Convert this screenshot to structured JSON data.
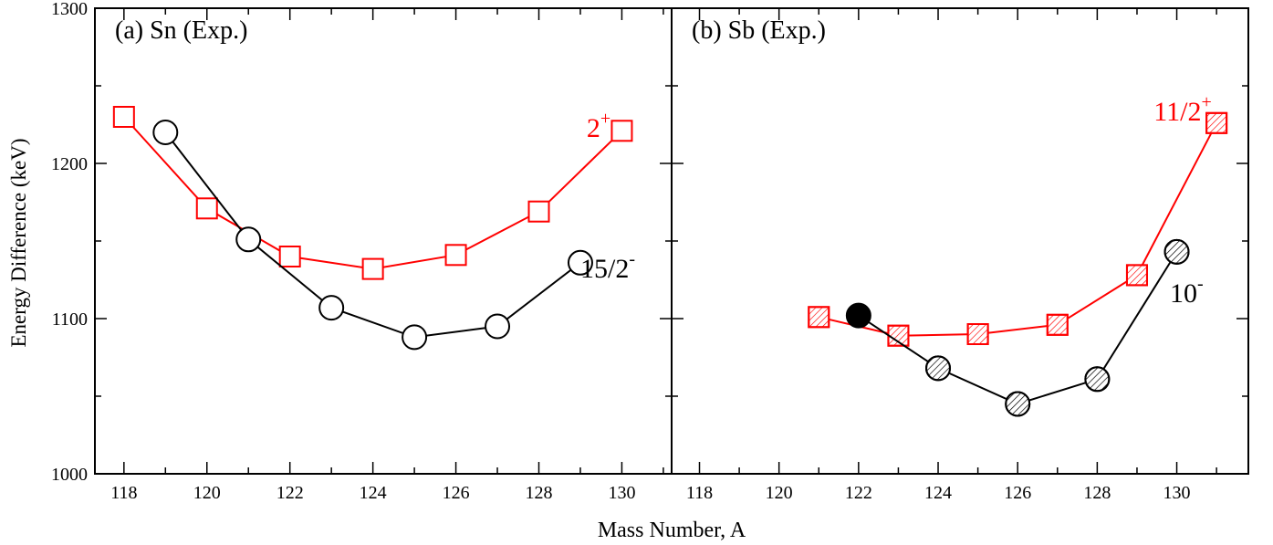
{
  "figure": {
    "ylabel": "Energy Difference (keV)",
    "xlabel": "Mass Number, A"
  },
  "chart_data": [
    {
      "type": "line",
      "title": "(a) Sn (Exp.)",
      "xlabel": "Mass Number, A",
      "ylabel": "Energy Difference (keV)",
      "xlim": [
        117.3,
        131.2
      ],
      "ylim": [
        1000,
        1300
      ],
      "xticks": [
        118,
        120,
        122,
        124,
        126,
        128,
        130
      ],
      "yticks": [
        1000,
        1100,
        1200,
        1300
      ],
      "grid": false,
      "series": [
        {
          "name": "2+",
          "label_main": "2",
          "label_sup": "+",
          "color": "#ff0000",
          "marker": "open-square",
          "x": [
            118,
            120,
            122,
            124,
            126,
            128,
            130
          ],
          "y": [
            1230,
            1171,
            1140,
            1132,
            1141,
            1169,
            1221
          ]
        },
        {
          "name": "15/2-",
          "label_main": "15/2",
          "label_sup": "-",
          "color": "#000000",
          "marker": "open-circle",
          "x": [
            119,
            121,
            123,
            125,
            127,
            129
          ],
          "y": [
            1220,
            1151,
            1107,
            1088,
            1095,
            1136
          ]
        }
      ]
    },
    {
      "type": "line",
      "title": "(b) Sb (Exp.)",
      "xlabel": "Mass Number, A",
      "ylabel": "Energy Difference (keV)",
      "xlim": [
        117.3,
        131.8
      ],
      "ylim": [
        1000,
        1300
      ],
      "xticks": [
        118,
        120,
        122,
        124,
        126,
        128,
        130
      ],
      "yticks": [
        1000,
        1100,
        1200,
        1300
      ],
      "grid": false,
      "series": [
        {
          "name": "11/2+",
          "label_main": "11/2",
          "label_sup": "+",
          "color": "#ff0000",
          "marker": "hatched-square",
          "x": [
            121,
            123,
            125,
            127,
            129,
            131
          ],
          "y": [
            1101,
            1089,
            1090,
            1096,
            1128,
            1226
          ]
        },
        {
          "name": "10-",
          "label_main": "10",
          "label_sup": "-",
          "color": "#000000",
          "marker": "hatched-circle",
          "filled_x": [
            122
          ],
          "x": [
            122,
            124,
            126,
            128,
            130
          ],
          "y": [
            1102,
            1068,
            1045,
            1061,
            1143
          ]
        }
      ]
    }
  ]
}
